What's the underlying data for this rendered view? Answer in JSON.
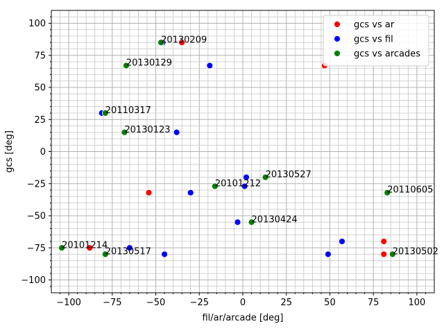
{
  "chart_data": {
    "type": "scatter",
    "xlabel": "fil/ar/arcade [deg]",
    "ylabel": "gcs [deg]",
    "xlim": [
      -110,
      110
    ],
    "ylim": [
      -110,
      110
    ],
    "xticks": [
      -100,
      -75,
      -50,
      -25,
      0,
      25,
      50,
      75,
      100
    ],
    "yticks": [
      -100,
      -75,
      -50,
      -25,
      0,
      25,
      50,
      75,
      100
    ],
    "xtick_labels": [
      "−100",
      "−75",
      "−50",
      "−25",
      "0",
      "25",
      "50",
      "75",
      "100"
    ],
    "ytick_labels": [
      "−100",
      "−75",
      "−50",
      "−25",
      "0",
      "25",
      "50",
      "75",
      "100"
    ],
    "grid": "major and minor",
    "legend_position": "top-right",
    "series": [
      {
        "name": "gcs vs ar",
        "color": "#ff0000",
        "points": [
          {
            "x": -35,
            "y": 85
          },
          {
            "x": 47,
            "y": 67
          },
          {
            "x": -54,
            "y": -32
          },
          {
            "x": -88,
            "y": -75
          },
          {
            "x": 81,
            "y": -70
          },
          {
            "x": 81,
            "y": -80
          }
        ]
      },
      {
        "name": "gcs vs fil",
        "color": "#0000ff",
        "points": [
          {
            "x": -46,
            "y": 85
          },
          {
            "x": -19,
            "y": 67
          },
          {
            "x": -81,
            "y": 30
          },
          {
            "x": -38,
            "y": 15
          },
          {
            "x": -30,
            "y": -32
          },
          {
            "x": 2,
            "y": -20
          },
          {
            "x": 1,
            "y": -27
          },
          {
            "x": -3,
            "y": -55
          },
          {
            "x": -65,
            "y": -75
          },
          {
            "x": -45,
            "y": -80
          },
          {
            "x": 57,
            "y": -70
          },
          {
            "x": 49,
            "y": -80
          }
        ]
      },
      {
        "name": "gcs vs arcades",
        "color": "#008000",
        "points": [
          {
            "x": -47,
            "y": 85
          },
          {
            "x": -67,
            "y": 67
          },
          {
            "x": -79,
            "y": 30
          },
          {
            "x": -68,
            "y": 15
          },
          {
            "x": -16,
            "y": -27
          },
          {
            "x": 13,
            "y": -20
          },
          {
            "x": 83,
            "y": -32
          },
          {
            "x": 5,
            "y": -55
          },
          {
            "x": -104,
            "y": -75
          },
          {
            "x": -79,
            "y": -80
          },
          {
            "x": 86,
            "y": -80
          }
        ]
      }
    ],
    "annotations": [
      {
        "text": "20130209",
        "x": -47,
        "y": 85
      },
      {
        "text": "20130129",
        "x": -67,
        "y": 67
      },
      {
        "text": "20110317",
        "x": -79,
        "y": 30
      },
      {
        "text": "20130123",
        "x": -68,
        "y": 15
      },
      {
        "text": "20101212",
        "x": -16,
        "y": -27
      },
      {
        "text": "20130527",
        "x": 13,
        "y": -20
      },
      {
        "text": "20110605",
        "x": 83,
        "y": -32
      },
      {
        "text": "20130424",
        "x": 5,
        "y": -55
      },
      {
        "text": "20101214",
        "x": -104,
        "y": -75
      },
      {
        "text": "20130517",
        "x": -79,
        "y": -80
      },
      {
        "text": "20130502",
        "x": 86,
        "y": -80
      }
    ]
  }
}
